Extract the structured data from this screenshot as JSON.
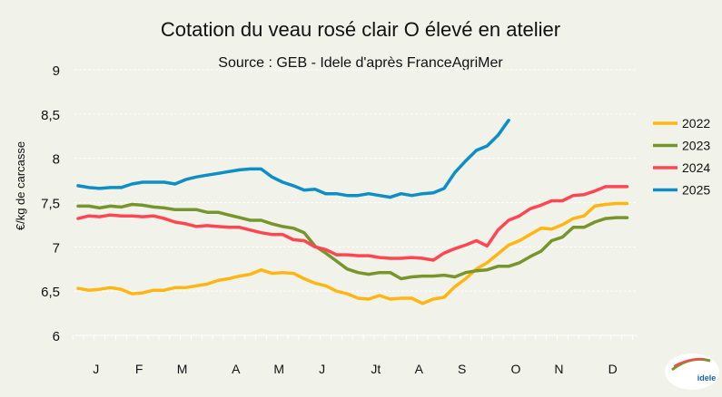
{
  "chart_data": {
    "type": "line",
    "title": "Cotation du veau rosé clair O élevé en atelier",
    "subtitle": "Source : GEB - Idele d'après FranceAgriMer",
    "ylabel": "€/kg de carcasse",
    "xlabel": "",
    "ylim": [
      6,
      9
    ],
    "yticks": [
      "6",
      "6,5",
      "7",
      "7,5",
      "8",
      "8,5",
      "9"
    ],
    "ytick_values": [
      6,
      6.5,
      7,
      7.5,
      8,
      8.5,
      9
    ],
    "x_unit": "week",
    "weeks": 52,
    "month_labels": [
      "J",
      "F",
      "M",
      "A",
      "M",
      "J",
      "Jt",
      "A",
      "S",
      "O",
      "N",
      "D"
    ],
    "month_label_weeks": [
      2,
      6,
      10,
      15,
      19,
      23,
      28,
      32,
      36,
      41,
      45,
      50
    ],
    "grid": true,
    "legend_position": "right",
    "series": [
      {
        "name": "2022",
        "color": "#ffb612",
        "values": [
          6.53,
          6.51,
          6.52,
          6.54,
          6.52,
          6.47,
          6.48,
          6.51,
          6.51,
          6.54,
          6.54,
          6.56,
          6.58,
          6.62,
          6.64,
          6.67,
          6.69,
          6.74,
          6.7,
          6.71,
          6.7,
          6.64,
          6.59,
          6.56,
          6.5,
          6.47,
          6.42,
          6.41,
          6.45,
          6.41,
          6.42,
          6.42,
          6.36,
          6.41,
          6.43,
          6.55,
          6.64,
          6.75,
          6.82,
          6.92,
          7.02,
          7.07,
          7.14,
          7.21,
          7.2,
          7.25,
          7.32,
          7.35,
          7.46,
          7.48,
          7.49,
          7.49
        ]
      },
      {
        "name": "2023",
        "color": "#77952b",
        "values": [
          7.46,
          7.46,
          7.44,
          7.46,
          7.45,
          7.48,
          7.47,
          7.45,
          7.44,
          7.42,
          7.42,
          7.42,
          7.39,
          7.39,
          7.36,
          7.33,
          7.3,
          7.3,
          7.26,
          7.23,
          7.21,
          7.16,
          7.01,
          6.93,
          6.84,
          6.75,
          6.71,
          6.69,
          6.71,
          6.71,
          6.64,
          6.66,
          6.67,
          6.67,
          6.68,
          6.66,
          6.71,
          6.73,
          6.74,
          6.78,
          6.78,
          6.82,
          6.89,
          6.95,
          7.07,
          7.11,
          7.22,
          7.22,
          7.28,
          7.32,
          7.33,
          7.33
        ]
      },
      {
        "name": "2024",
        "color": "#ff4651",
        "values": [
          7.32,
          7.35,
          7.34,
          7.36,
          7.35,
          7.35,
          7.34,
          7.35,
          7.32,
          7.28,
          7.26,
          7.23,
          7.24,
          7.23,
          7.22,
          7.22,
          7.19,
          7.16,
          7.14,
          7.14,
          7.08,
          7.07,
          7.0,
          6.97,
          6.91,
          6.91,
          6.9,
          6.9,
          6.88,
          6.87,
          6.87,
          6.88,
          6.87,
          6.85,
          6.93,
          6.98,
          7.02,
          7.07,
          7.01,
          7.19,
          7.3,
          7.35,
          7.43,
          7.47,
          7.52,
          7.52,
          7.58,
          7.59,
          7.63,
          7.68,
          7.68,
          7.68
        ]
      },
      {
        "name": "2025",
        "color": "#0d8fc5",
        "values": [
          7.69,
          7.67,
          7.66,
          7.67,
          7.67,
          7.71,
          7.73,
          7.73,
          7.73,
          7.71,
          7.76,
          7.79,
          7.81,
          7.83,
          7.85,
          7.87,
          7.88,
          7.88,
          7.79,
          7.73,
          7.69,
          7.64,
          7.65,
          7.6,
          7.6,
          7.58,
          7.58,
          7.6,
          7.58,
          7.56,
          7.6,
          7.58,
          7.6,
          7.61,
          7.66,
          7.84,
          7.97,
          8.09,
          8.14,
          8.26,
          8.43
        ]
      }
    ]
  },
  "logo": {
    "text": "idele"
  }
}
